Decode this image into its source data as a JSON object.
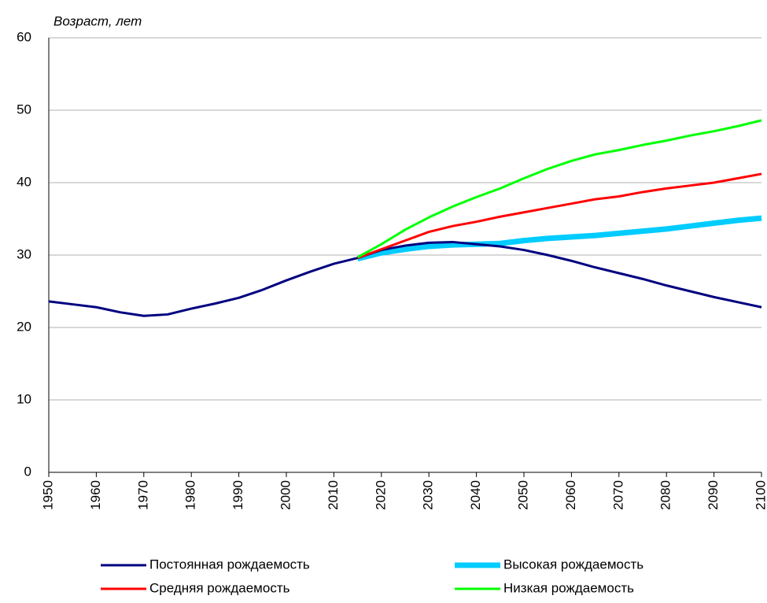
{
  "chart_data": {
    "type": "line",
    "y_label": "Возраст, лет",
    "x": [
      1950,
      1955,
      1960,
      1965,
      1970,
      1975,
      1980,
      1985,
      1990,
      1995,
      2000,
      2005,
      2010,
      2015,
      2020,
      2025,
      2030,
      2035,
      2040,
      2045,
      2050,
      2055,
      2060,
      2065,
      2070,
      2075,
      2080,
      2085,
      2090,
      2095,
      2100
    ],
    "series": [
      {
        "name": "Постоянная рождаемость",
        "color": "#000080",
        "values": [
          23.6,
          23.2,
          22.8,
          22.1,
          21.6,
          21.8,
          22.6,
          23.3,
          24.1,
          25.2,
          26.5,
          27.7,
          28.8,
          29.6,
          30.7,
          31.3,
          31.7,
          31.8,
          31.5,
          31.2,
          30.7,
          30.0,
          29.2,
          28.3,
          27.5,
          26.7,
          25.8,
          25.0,
          24.2,
          23.5,
          22.8
        ]
      },
      {
        "name": "Высокая рождаемость",
        "color": "#00ccff",
        "values": [
          null,
          null,
          null,
          null,
          null,
          null,
          null,
          null,
          null,
          null,
          null,
          null,
          null,
          29.5,
          30.3,
          30.8,
          31.2,
          31.4,
          31.5,
          31.6,
          32.0,
          32.3,
          32.5,
          32.7,
          33.0,
          33.3,
          33.6,
          34.0,
          34.4,
          34.8,
          35.1
        ]
      },
      {
        "name": "Средняя рождаемость",
        "color": "#ff0000",
        "values": [
          null,
          null,
          null,
          null,
          null,
          null,
          null,
          null,
          null,
          null,
          null,
          null,
          null,
          29.6,
          30.8,
          32.0,
          33.2,
          34.0,
          34.6,
          35.3,
          35.9,
          36.5,
          37.1,
          37.7,
          38.1,
          38.7,
          39.2,
          39.6,
          40.0,
          40.6,
          41.2
        ]
      },
      {
        "name": "Низкая рождаемость",
        "color": "#00ff00",
        "values": [
          null,
          null,
          null,
          null,
          null,
          null,
          null,
          null,
          null,
          null,
          null,
          null,
          null,
          29.7,
          31.5,
          33.5,
          35.2,
          36.7,
          38.0,
          39.2,
          40.6,
          41.9,
          43.0,
          43.9,
          44.5,
          45.2,
          45.8,
          46.5,
          47.1,
          47.8,
          48.6
        ]
      }
    ],
    "xlim": [
      1950,
      2100
    ],
    "xticks": [
      1950,
      1960,
      1970,
      1980,
      1990,
      2000,
      2010,
      2020,
      2030,
      2040,
      2050,
      2060,
      2070,
      2080,
      2090,
      2100
    ],
    "ylim": [
      0,
      60
    ],
    "yticks": [
      0,
      10,
      20,
      30,
      40,
      50,
      60
    ],
    "grid": true
  }
}
